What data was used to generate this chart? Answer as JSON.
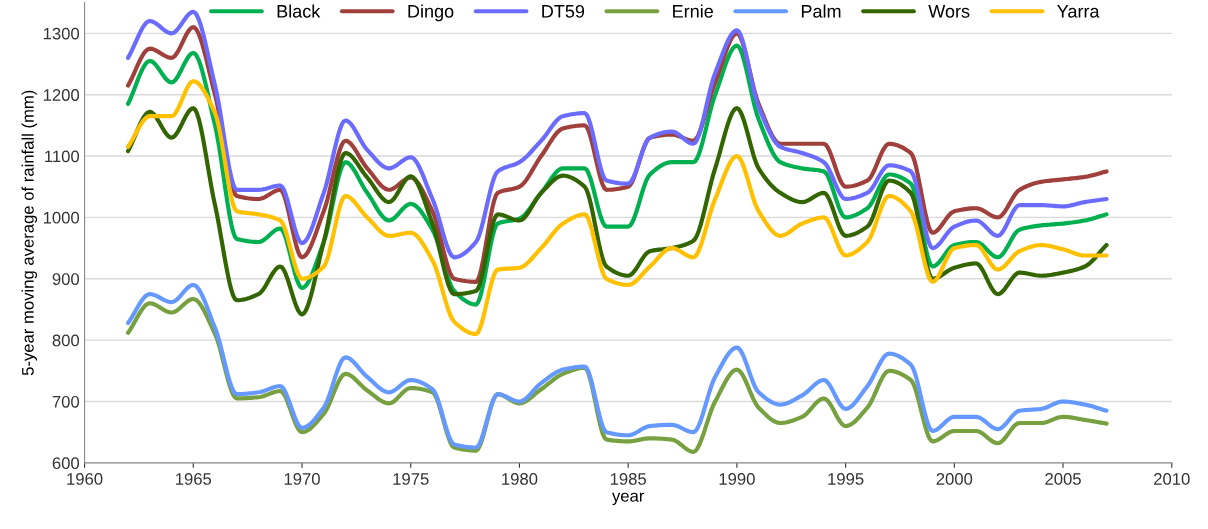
{
  "chart_data": {
    "type": "line",
    "xlabel": "year",
    "ylabel": "5-year moving average of rainfall (mm)",
    "x": [
      1962,
      1963,
      1964,
      1965,
      1966,
      1967,
      1968,
      1969,
      1970,
      1971,
      1972,
      1973,
      1974,
      1975,
      1976,
      1977,
      1978,
      1979,
      1980,
      1981,
      1982,
      1983,
      1984,
      1985,
      1986,
      1987,
      1988,
      1989,
      1990,
      1991,
      1992,
      1993,
      1994,
      1995,
      1996,
      1997,
      1998,
      1999,
      2000,
      2001,
      2002,
      2003,
      2004,
      2005,
      2006,
      2007
    ],
    "series": [
      {
        "name": "Black",
        "color": "#00b050",
        "values": [
          1185,
          1255,
          1220,
          1268,
          1150,
          965,
          960,
          982,
          885,
          960,
          1090,
          1040,
          995,
          1022,
          980,
          880,
          858,
          990,
          998,
          1040,
          1080,
          1080,
          985,
          985,
          1070,
          1090,
          1090,
          1200,
          1280,
          1160,
          1090,
          1080,
          1075,
          1000,
          1015,
          1070,
          1055,
          920,
          955,
          960,
          935,
          980,
          987,
          990,
          995,
          1005
        ]
      },
      {
        "name": "Dingo",
        "color": "#a0403c",
        "values": [
          1215,
          1275,
          1260,
          1310,
          1200,
          1035,
          1030,
          1045,
          935,
          1010,
          1125,
          1080,
          1045,
          1065,
          1010,
          900,
          895,
          1040,
          1050,
          1100,
          1145,
          1150,
          1045,
          1050,
          1130,
          1135,
          1125,
          1220,
          1300,
          1185,
          1120,
          1120,
          1120,
          1050,
          1060,
          1120,
          1105,
          975,
          1010,
          1015,
          1000,
          1045,
          1058,
          1062,
          1066,
          1075
        ]
      },
      {
        "name": "DT59",
        "color": "#6b6bff",
        "values": [
          1260,
          1320,
          1300,
          1335,
          1215,
          1045,
          1045,
          1052,
          958,
          1040,
          1158,
          1110,
          1080,
          1098,
          1030,
          935,
          960,
          1075,
          1090,
          1125,
          1165,
          1170,
          1060,
          1055,
          1130,
          1140,
          1120,
          1235,
          1305,
          1180,
          1115,
          1105,
          1090,
          1030,
          1040,
          1085,
          1075,
          950,
          985,
          995,
          970,
          1020,
          1020,
          1018,
          1025,
          1030
        ]
      },
      {
        "name": "Ernie",
        "color": "#77a040",
        "values": [
          812,
          860,
          845,
          867,
          810,
          705,
          707,
          717,
          650,
          680,
          745,
          718,
          697,
          722,
          715,
          625,
          620,
          712,
          697,
          720,
          745,
          755,
          638,
          635,
          640,
          638,
          618,
          700,
          752,
          690,
          665,
          675,
          705,
          660,
          690,
          750,
          735,
          635,
          652,
          652,
          632,
          665,
          665,
          675,
          670,
          664
        ]
      },
      {
        "name": "Palm",
        "color": "#6699ff",
        "values": [
          828,
          875,
          862,
          890,
          820,
          712,
          715,
          725,
          657,
          690,
          772,
          740,
          715,
          735,
          720,
          630,
          625,
          712,
          700,
          730,
          752,
          757,
          650,
          645,
          660,
          662,
          650,
          740,
          788,
          715,
          695,
          710,
          735,
          688,
          725,
          778,
          760,
          652,
          675,
          675,
          655,
          685,
          688,
          700,
          695,
          685
        ]
      },
      {
        "name": "Wors",
        "color": "#336600",
        "values": [
          1108,
          1172,
          1130,
          1178,
          1020,
          865,
          875,
          920,
          842,
          960,
          1105,
          1065,
          1025,
          1067,
          990,
          875,
          880,
          1005,
          995,
          1040,
          1068,
          1050,
          920,
          905,
          945,
          950,
          962,
          1080,
          1178,
          1080,
          1040,
          1025,
          1040,
          970,
          985,
          1060,
          1040,
          900,
          918,
          925,
          875,
          910,
          905,
          910,
          920,
          955
        ]
      },
      {
        "name": "Yarra",
        "color": "#ffc000",
        "values": [
          1115,
          1165,
          1165,
          1222,
          1170,
          1010,
          1005,
          995,
          900,
          920,
          1035,
          1000,
          970,
          975,
          930,
          830,
          810,
          915,
          918,
          950,
          990,
          1005,
          900,
          890,
          920,
          950,
          935,
          1030,
          1100,
          1010,
          970,
          990,
          1000,
          938,
          960,
          1035,
          1010,
          895,
          950,
          955,
          915,
          945,
          955,
          948,
          938,
          938
        ]
      }
    ],
    "xlim": [
      1960,
      2010
    ],
    "xticks": [
      1960,
      1965,
      1970,
      1975,
      1980,
      1985,
      1990,
      1995,
      2000,
      2005,
      2010
    ],
    "ylim": [
      600,
      1350
    ],
    "yticks": [
      600,
      700,
      800,
      900,
      1000,
      1100,
      1200,
      1300
    ],
    "grid": "y",
    "legend": "top",
    "marker": "none",
    "line_style": "solid"
  }
}
